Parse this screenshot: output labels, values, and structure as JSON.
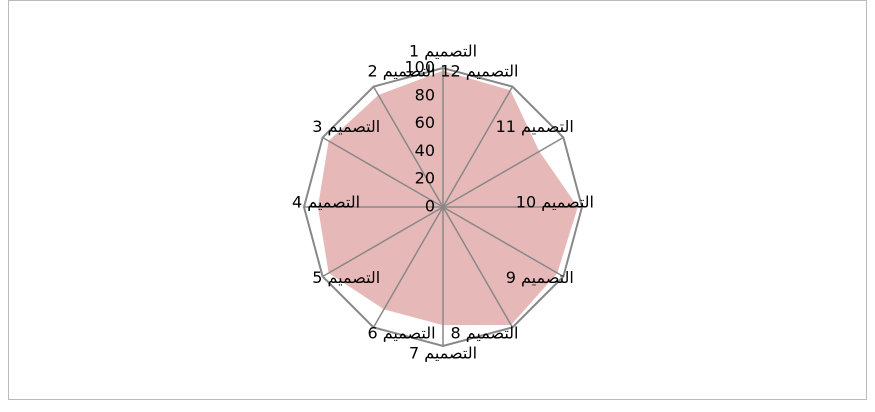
{
  "chart_data": {
    "type": "radar",
    "categories": [
      "التصميم 1",
      "التصميم 2",
      "التصميم 3",
      "التصميم 4",
      "التصميم 5",
      "التصميم 6",
      "التصميم 7",
      "التصميم 8",
      "التصميم 9",
      "التصميم 10",
      "التصميم 11",
      "التصميم 12"
    ],
    "values": [
      98,
      93,
      95,
      90,
      95,
      85,
      85,
      98,
      95,
      97,
      80,
      97
    ],
    "color": "#e6b9b8",
    "ylim": [
      0,
      100
    ],
    "yticks": [
      0,
      20,
      40,
      60,
      80,
      100
    ]
  }
}
